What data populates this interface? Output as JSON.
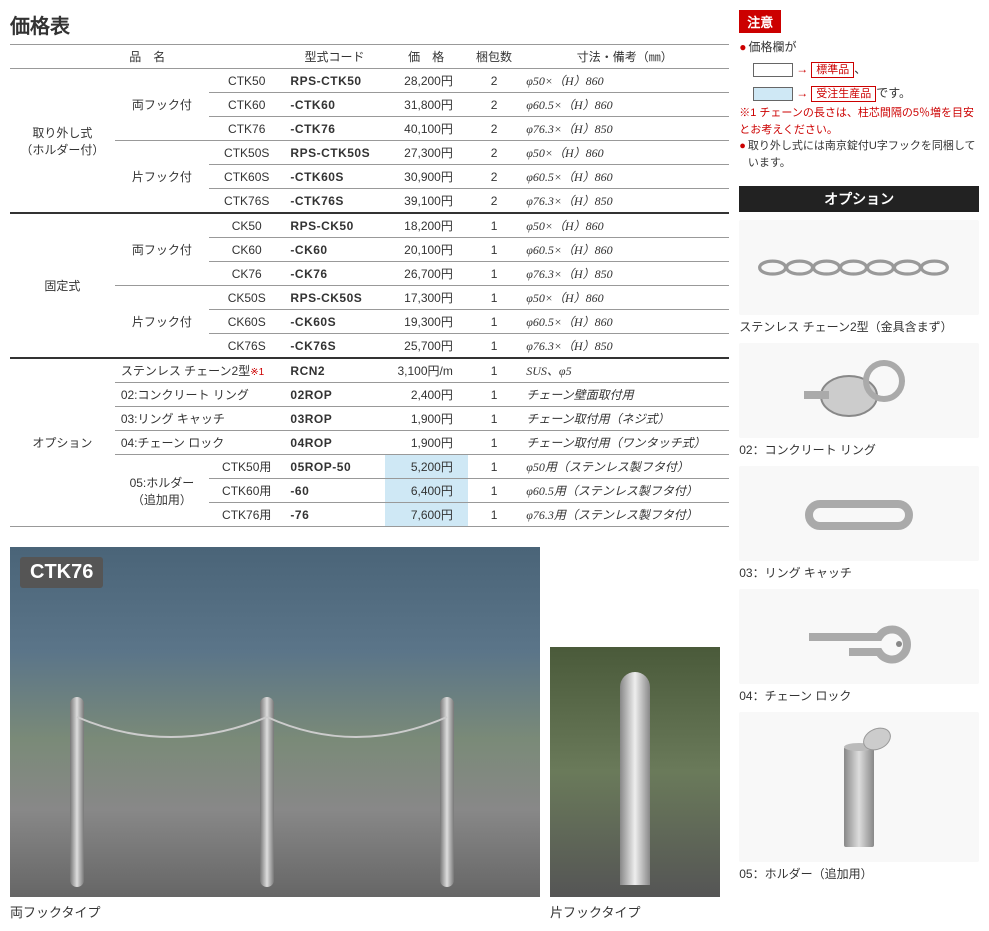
{
  "title": "価格表",
  "headers": {
    "name": "品　名",
    "code": "型式コード",
    "price": "価　格",
    "qty": "梱包数",
    "dim": "寸法・備考（㎜）"
  },
  "groups": [
    {
      "cat": "取り外し式\n（ホルダー付）",
      "subgroups": [
        {
          "sub": "両フック付",
          "rows": [
            {
              "model": "CTK50",
              "code": "RPS-CTK50",
              "price": "28,200円",
              "qty": "2",
              "dim": "φ50×（H）860",
              "hl": false
            },
            {
              "model": "CTK60",
              "code": "-CTK60",
              "price": "31,800円",
              "qty": "2",
              "dim": "φ60.5×（H）860",
              "hl": false
            },
            {
              "model": "CTK76",
              "code": "-CTK76",
              "price": "40,100円",
              "qty": "2",
              "dim": "φ76.3×（H）850",
              "hl": false
            }
          ]
        },
        {
          "sub": "片フック付",
          "rows": [
            {
              "model": "CTK50S",
              "code": "RPS-CTK50S",
              "price": "27,300円",
              "qty": "2",
              "dim": "φ50×（H）860",
              "hl": false
            },
            {
              "model": "CTK60S",
              "code": "-CTK60S",
              "price": "30,900円",
              "qty": "2",
              "dim": "φ60.5×（H）860",
              "hl": false
            },
            {
              "model": "CTK76S",
              "code": "-CTK76S",
              "price": "39,100円",
              "qty": "2",
              "dim": "φ76.3×（H）850",
              "hl": false
            }
          ]
        }
      ]
    },
    {
      "cat": "固定式",
      "subgroups": [
        {
          "sub": "両フック付",
          "rows": [
            {
              "model": "CK50",
              "code": "RPS-CK50",
              "price": "18,200円",
              "qty": "1",
              "dim": "φ50×（H）860",
              "hl": false
            },
            {
              "model": "CK60",
              "code": "-CK60",
              "price": "20,100円",
              "qty": "1",
              "dim": "φ60.5×（H）860",
              "hl": false
            },
            {
              "model": "CK76",
              "code": "-CK76",
              "price": "26,700円",
              "qty": "1",
              "dim": "φ76.3×（H）850",
              "hl": false
            }
          ]
        },
        {
          "sub": "片フック付",
          "rows": [
            {
              "model": "CK50S",
              "code": "RPS-CK50S",
              "price": "17,300円",
              "qty": "1",
              "dim": "φ50×（H）860",
              "hl": false
            },
            {
              "model": "CK60S",
              "code": "-CK60S",
              "price": "19,300円",
              "qty": "1",
              "dim": "φ60.5×（H）860",
              "hl": false
            },
            {
              "model": "CK76S",
              "code": "-CK76S",
              "price": "25,700円",
              "qty": "1",
              "dim": "φ76.3×（H）850",
              "hl": false
            }
          ]
        }
      ]
    }
  ],
  "options_cat": "オプション",
  "option_rows": [
    {
      "name": "ステンレス チェーン2型",
      "star": "※1",
      "code": "RCN2",
      "price": "3,100円/m",
      "qty": "1",
      "dim": "SUS、φ5",
      "hl": false,
      "span": 2
    },
    {
      "name": "02:コンクリート リング",
      "code": "02ROP",
      "price": "2,400円",
      "qty": "1",
      "dim": "チェーン壁面取付用",
      "hl": false,
      "span": 2
    },
    {
      "name": "03:リング キャッチ",
      "code": "03ROP",
      "price": "1,900円",
      "qty": "1",
      "dim": "チェーン取付用（ネジ式）",
      "hl": false,
      "span": 2
    },
    {
      "name": "04:チェーン ロック",
      "code": "04ROP",
      "price": "1,900円",
      "qty": "1",
      "dim": "チェーン取付用（ワンタッチ式）",
      "hl": false,
      "span": 2
    }
  ],
  "holder_group": {
    "name": "05:ホルダー\n（追加用）",
    "rows": [
      {
        "model": "CTK50用",
        "code": "05ROP-50",
        "price": "5,200円",
        "qty": "1",
        "dim": "φ50用（ステンレス製フタ付）",
        "hl": true
      },
      {
        "model": "CTK60用",
        "code": "-60",
        "price": "6,400円",
        "qty": "1",
        "dim": "φ60.5用（ステンレス製フタ付）",
        "hl": true
      },
      {
        "model": "CTK76用",
        "code": "-76",
        "price": "7,600円",
        "qty": "1",
        "dim": "φ76.3用（ステンレス製フタ付）",
        "hl": true
      }
    ]
  },
  "photo_badge": "CTK76",
  "caption1": "両フックタイプ",
  "caption2": "片フックタイプ",
  "notice": {
    "banner": "注意",
    "line1": "価格欄が",
    "legend1": "標準品",
    "legend2": "受注生産品",
    "legend2_suffix": "です。",
    "note1": "※1 チェーンの長さは、柱芯間隔の5％増を目安とお考えください。",
    "note2": "取り外し式には南京錠付U字フックを同梱しています。"
  },
  "option_banner": "オプション",
  "option_items": [
    {
      "label": "ステンレス チェーン2型（金具含まず）",
      "icon": "chain"
    },
    {
      "label": "02：コンクリート リング",
      "icon": "ring"
    },
    {
      "label": "03：リング キャッチ",
      "icon": "catch"
    },
    {
      "label": "04：チェーン ロック",
      "icon": "lock"
    },
    {
      "label": "05：ホルダー（追加用）",
      "icon": "holder"
    }
  ]
}
